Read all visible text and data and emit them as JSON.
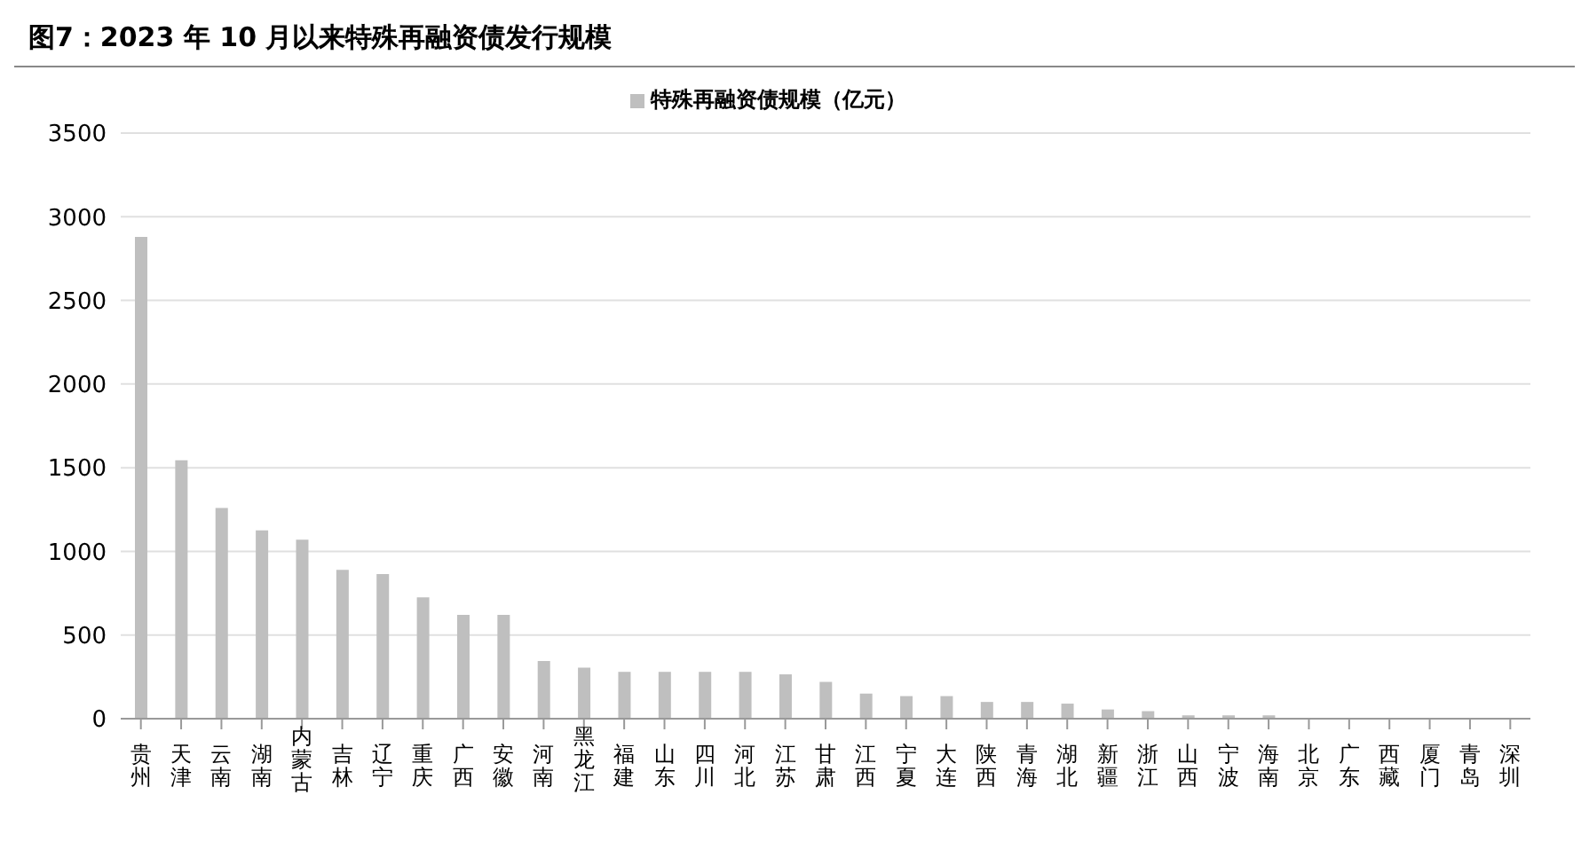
{
  "chart_data": {
    "type": "bar",
    "title": "图7：2023 年 10 月以来特殊再融资债发行规模",
    "categories": [
      "贵州",
      "天津",
      "云南",
      "湖南",
      "内蒙古",
      "吉林",
      "辽宁",
      "重庆",
      "广西",
      "安徽",
      "河南",
      "黑龙江",
      "福建",
      "山东",
      "四川",
      "河北",
      "江苏",
      "甘肃",
      "江西",
      "宁夏",
      "大连",
      "陕西",
      "青海",
      "湖北",
      "新疆",
      "浙江",
      "山西",
      "宁波",
      "海南",
      "北京",
      "广东",
      "西藏",
      "厦门",
      "青岛",
      "深圳"
    ],
    "series": [
      {
        "name": "特殊再融资债规模（亿元）",
        "color": "#bfbfbf",
        "values": [
          2880,
          1545,
          1260,
          1125,
          1070,
          890,
          865,
          725,
          620,
          620,
          345,
          305,
          280,
          280,
          280,
          280,
          265,
          220,
          150,
          135,
          135,
          100,
          100,
          90,
          55,
          45,
          20,
          20,
          20,
          0,
          0,
          0,
          0,
          0,
          0
        ]
      }
    ],
    "ylim": [
      0,
      3500
    ],
    "yticks": [
      0,
      500,
      1000,
      1500,
      2000,
      2500,
      3000,
      3500
    ],
    "grid": "y",
    "legend": "top"
  }
}
